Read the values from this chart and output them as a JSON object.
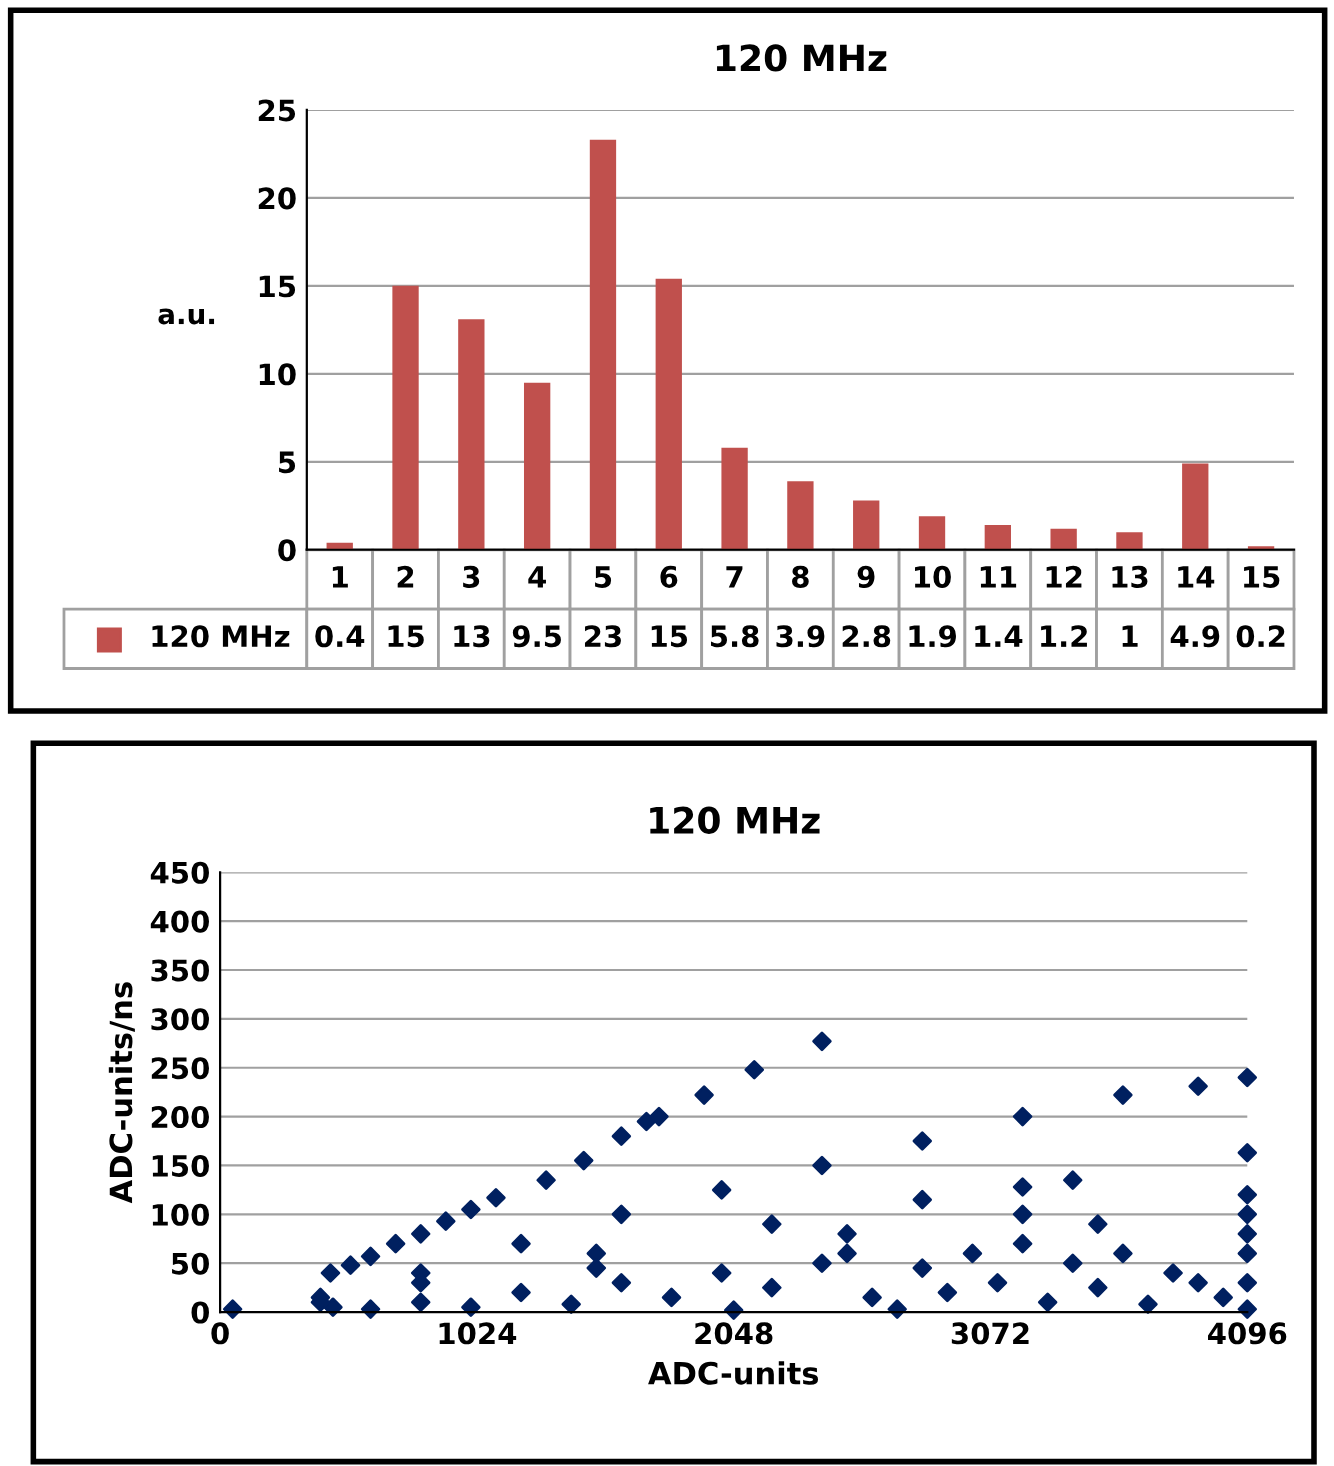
{
  "chart_data": [
    {
      "type": "bar",
      "title": "120 MHz",
      "ylabel": "a.u.",
      "categories": [
        "1",
        "2",
        "3",
        "4",
        "5",
        "6",
        "7",
        "8",
        "9",
        "10",
        "11",
        "12",
        "13",
        "14",
        "15"
      ],
      "series": [
        {
          "name": "120 MHz",
          "color": "#c0504d",
          "values": [
            0.4,
            15.0,
            13.1,
            9.5,
            23.3,
            15.4,
            5.8,
            3.9,
            2.8,
            1.9,
            1.4,
            1.2,
            1.0,
            4.9,
            0.2
          ],
          "value_labels": [
            "0.4",
            "15",
            "13",
            "9.5",
            "23",
            "15",
            "5.8",
            "3.9",
            "2.8",
            "1.9",
            "1.4",
            "1.2",
            "1",
            "4.9",
            "0.2"
          ]
        }
      ],
      "ylim": [
        0,
        25
      ],
      "yticks": [
        0,
        5,
        10,
        15,
        20,
        25
      ],
      "grid": "y",
      "legend": "bottom"
    },
    {
      "type": "scatter",
      "title": "120 MHz",
      "xlabel": "ADC-units",
      "ylabel": "ADC-units/ns",
      "marker": "diamond",
      "grid": "y",
      "xlim": [
        0,
        4096
      ],
      "xticks": [
        0,
        1024,
        2048,
        3072,
        4096
      ],
      "ylim": [
        0,
        450
      ],
      "yticks": [
        0,
        50,
        100,
        150,
        200,
        250,
        300,
        350,
        400,
        450
      ],
      "series": [
        {
          "color": "#002060",
          "x": [
            440,
            520,
            600,
            700,
            800,
            900,
            1000,
            1100,
            1300,
            1450,
            1600,
            1700,
            1750,
            1930,
            2130,
            2400,
            400,
            800,
            1200,
            1600,
            2000,
            2400,
            2800,
            3200,
            3600,
            3900,
            800,
            1500,
            2200,
            2800,
            3200,
            3400,
            1500,
            2500,
            3200,
            4096,
            2500,
            3500,
            4096,
            450,
            600,
            800,
            1000,
            1200,
            1400,
            1600,
            1800,
            2000,
            2048,
            2200,
            2400,
            2600,
            2700,
            2800,
            2900,
            3000,
            3100,
            3200,
            3300,
            3400,
            3500,
            3600,
            3700,
            3800,
            3900,
            4000,
            4096,
            4096,
            4096,
            4096,
            4096,
            4096,
            50,
            400
          ],
          "values": [
            40,
            48,
            57,
            70,
            80,
            93,
            105,
            117,
            135,
            155,
            180,
            195,
            200,
            222,
            248,
            277,
            15,
            40,
            70,
            100,
            125,
            150,
            175,
            200,
            222,
            231,
            30,
            60,
            90,
            115,
            128,
            135,
            45,
            80,
            100,
            120,
            60,
            90,
            100,
            5,
            3,
            10,
            5,
            20,
            8,
            30,
            15,
            40,
            2,
            25,
            50,
            15,
            3,
            45,
            20,
            60,
            30,
            70,
            10,
            50,
            25,
            60,
            8,
            40,
            30,
            15,
            3,
            30,
            60,
            80,
            163,
            240,
            3,
            10
          ]
        }
      ]
    }
  ]
}
